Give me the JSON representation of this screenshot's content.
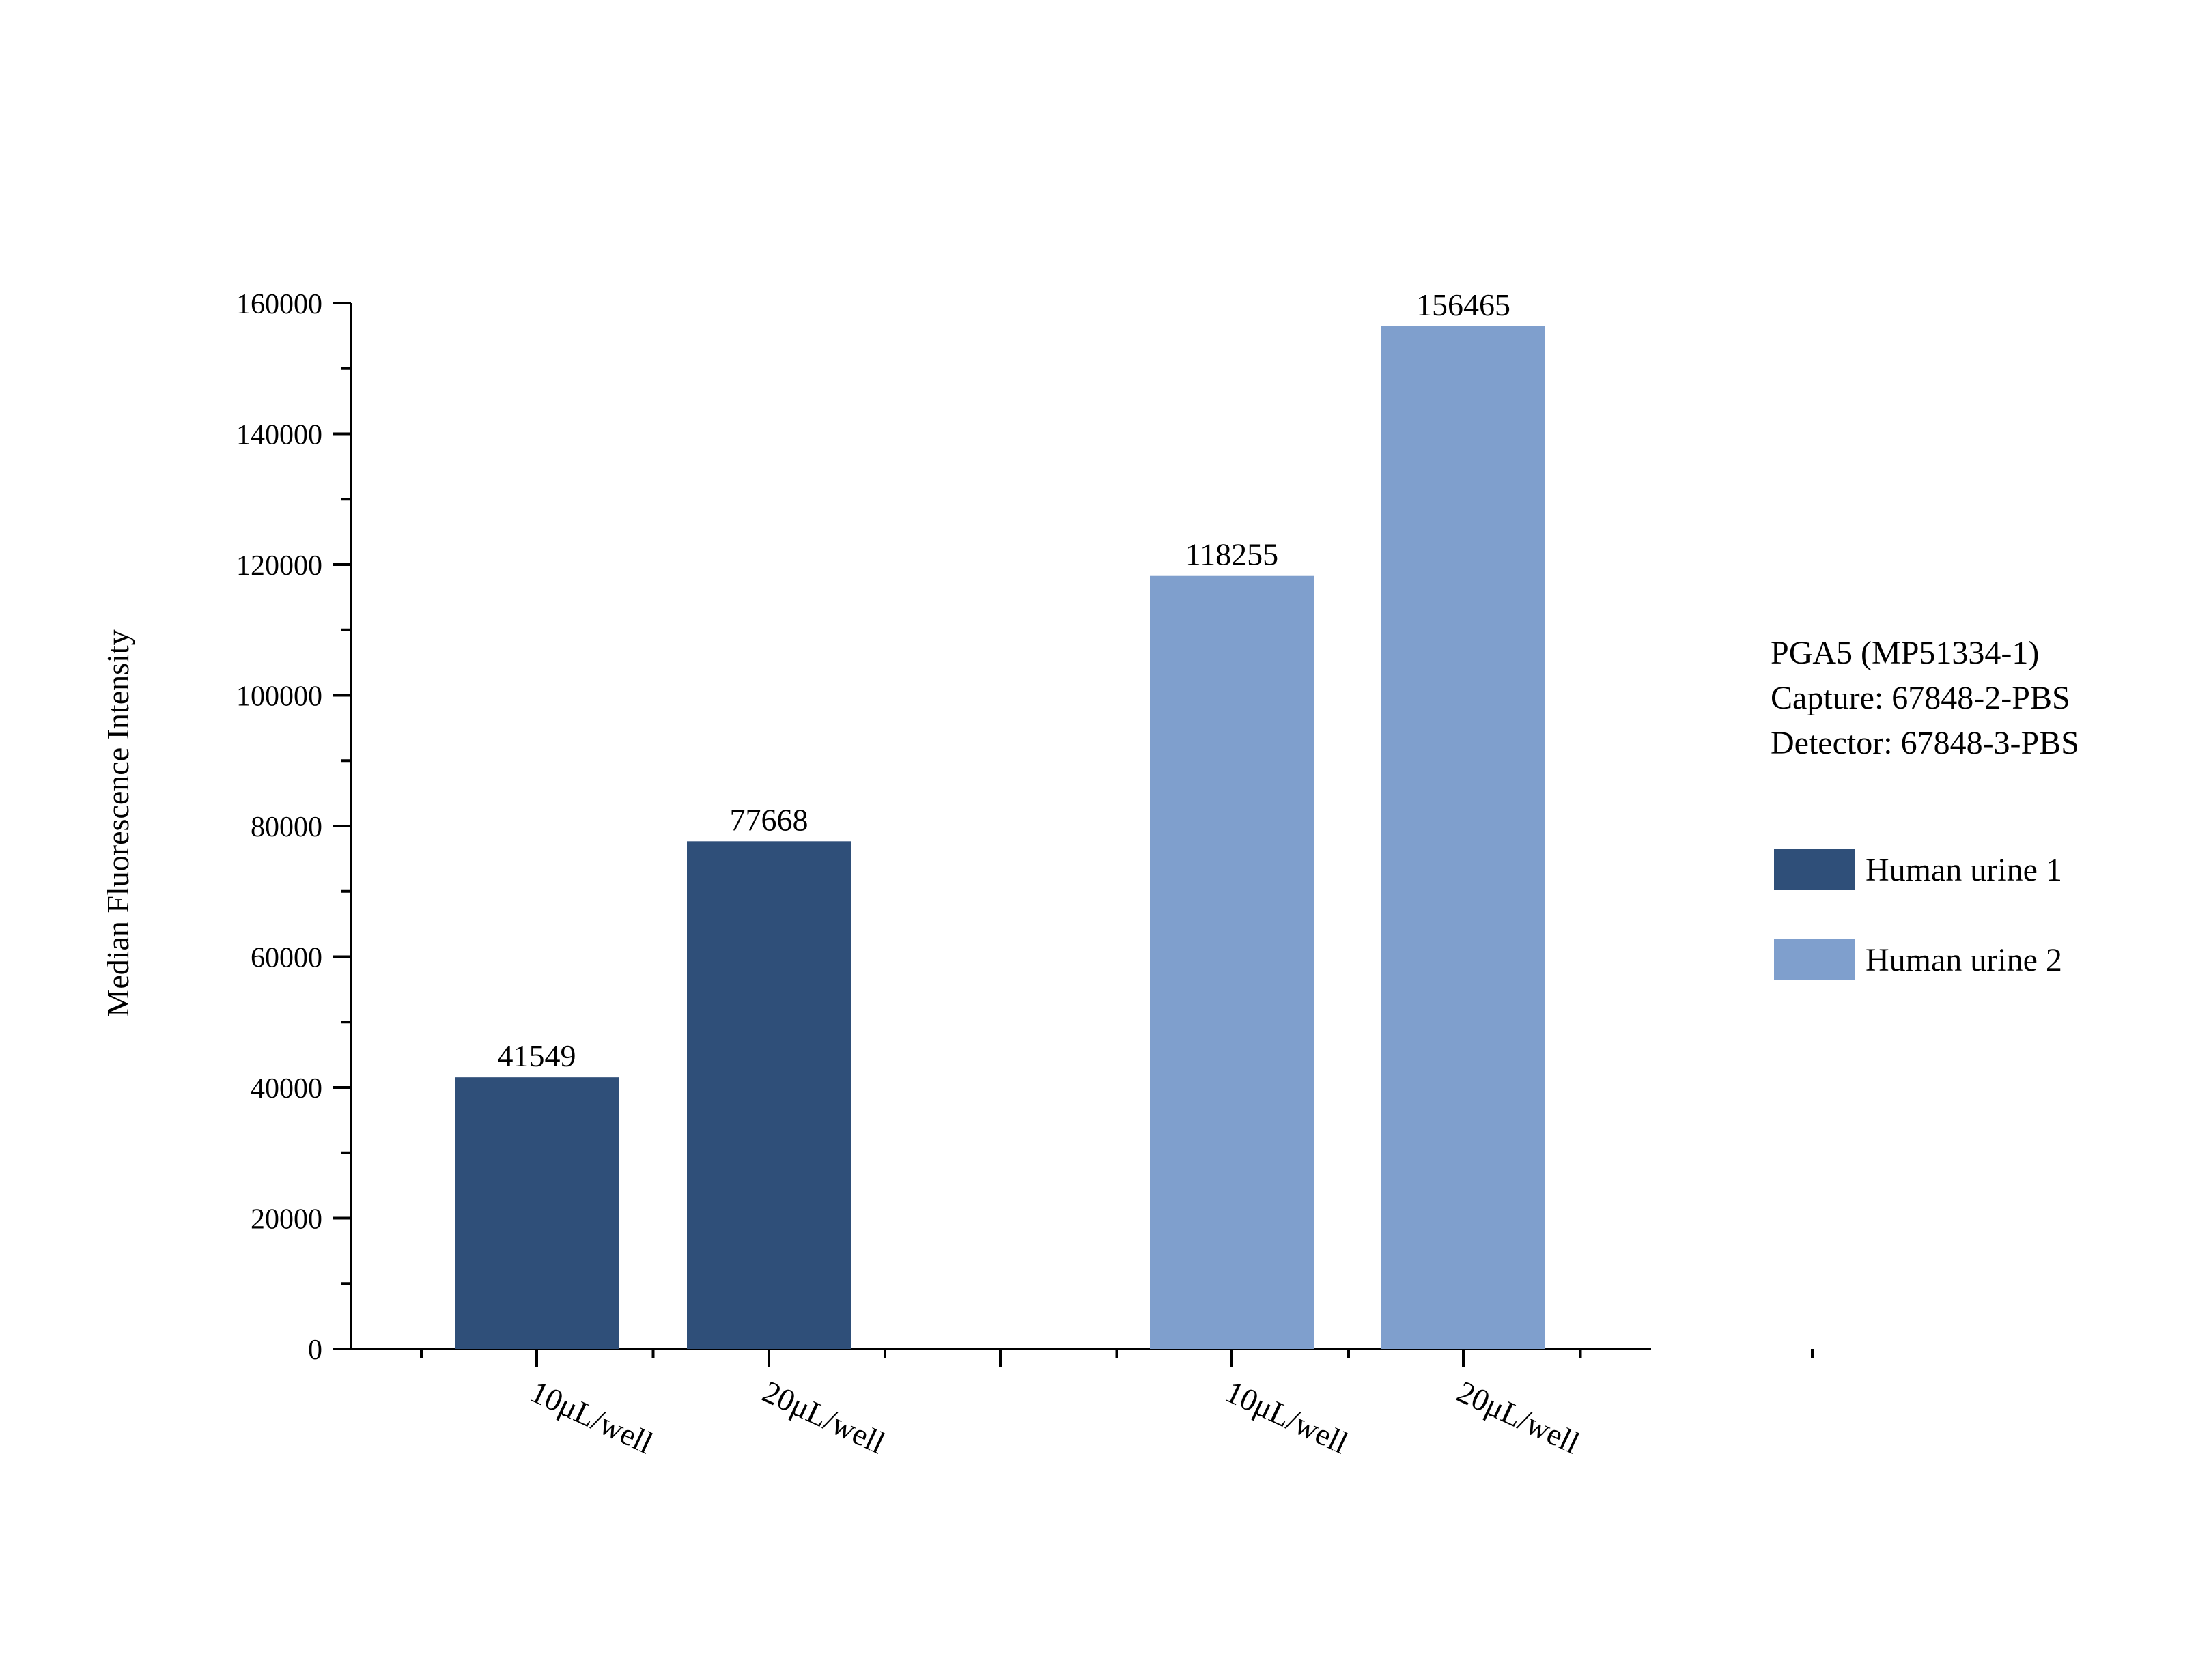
{
  "chart_data": {
    "type": "bar",
    "title": "",
    "xlabel": "",
    "ylabel": "Median Fluorescence Intensity",
    "ylim": [
      0,
      160000
    ],
    "yticks": [
      0,
      20000,
      40000,
      60000,
      80000,
      100000,
      120000,
      140000,
      160000
    ],
    "grid": false,
    "legend_position": "right",
    "info_lines": [
      "PGA5 (MP51334-1)",
      "Capture: 67848-2-PBS",
      "Detector: 67848-3-PBS"
    ],
    "series": [
      {
        "name": "Human urine 1",
        "color": "#2f4f79",
        "categories": [
          "10μL/well",
          "20μL/well"
        ],
        "values": [
          41549,
          77668
        ]
      },
      {
        "name": "Human urine 2",
        "color": "#7f9fcd",
        "categories": [
          "10μL/well",
          "20μL/well"
        ],
        "values": [
          118255,
          156465
        ]
      }
    ]
  }
}
